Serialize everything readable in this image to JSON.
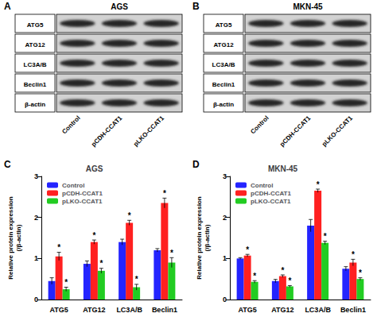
{
  "blots": [
    {
      "label": "A",
      "title": "AGS",
      "proteins": [
        "ATG5",
        "ATG12",
        "LC3A/B",
        "Beclin1",
        "β-actin"
      ],
      "lanes": [
        "Control",
        "pCDH-CCAT1",
        "pLKO-CCAT1"
      ]
    },
    {
      "label": "B",
      "title": "MKN-45",
      "proteins": [
        "ATG5",
        "ATG12",
        "LC3A/B",
        "Beclin1",
        "β-actin"
      ],
      "lanes": [
        "Control",
        "pCDH-CCAT1",
        "pLKO-CCAT1"
      ]
    }
  ],
  "chart_data": [
    {
      "type": "bar",
      "label": "C",
      "title": "AGS",
      "y_label": "Relative protein expression\n(/β-actin)",
      "categories": [
        "ATG5",
        "ATG12",
        "LC3A/B",
        "Beclin1"
      ],
      "series": [
        {
          "name": "Control",
          "color": "#2424ff",
          "values": [
            0.45,
            0.87,
            1.4,
            1.2
          ],
          "errors": [
            0.08,
            0.07,
            0.07,
            0.04
          ]
        },
        {
          "name": "pCDH-CCAT1",
          "color": "#ff2020",
          "values": [
            1.05,
            1.4,
            1.87,
            2.35
          ],
          "errors": [
            0.1,
            0.05,
            0.06,
            0.12
          ],
          "annotations": [
            "*",
            "*",
            "*",
            "*"
          ]
        },
        {
          "name": "pLKO-CCAT1",
          "color": "#22cc22",
          "values": [
            0.25,
            0.7,
            0.3,
            0.9
          ],
          "errors": [
            0.05,
            0.06,
            0.07,
            0.12
          ],
          "annotations": [
            "*",
            "*",
            "*",
            "*"
          ]
        }
      ],
      "ylim": [
        0,
        3
      ],
      "yticks": [
        0,
        1,
        2,
        3
      ],
      "legend": "top-left",
      "grid": false
    },
    {
      "type": "bar",
      "label": "D",
      "title": "MKN-45",
      "y_label": "Relative protein expression\n(/β-actin)",
      "categories": [
        "ATG5",
        "ATG12",
        "LC3A/B",
        "Beclin1"
      ],
      "series": [
        {
          "name": "Control",
          "color": "#2424ff",
          "values": [
            1.0,
            0.45,
            1.8,
            0.75
          ],
          "errors": [
            0.02,
            0.04,
            0.15,
            0.05
          ]
        },
        {
          "name": "pCDH-CCAT1",
          "color": "#ff2020",
          "values": [
            1.07,
            0.57,
            2.65,
            0.9
          ],
          "errors": [
            0.03,
            0.03,
            0.04,
            0.08
          ],
          "annotations": [
            "*",
            "*",
            "*",
            "*"
          ]
        },
        {
          "name": "pLKO-CCAT1",
          "color": "#22cc22",
          "values": [
            0.43,
            0.32,
            1.38,
            0.5
          ],
          "errors": [
            0.03,
            0.02,
            0.04,
            0.03
          ],
          "annotations": [
            "*",
            "*",
            "*",
            "*"
          ]
        }
      ],
      "ylim": [
        0,
        3
      ],
      "yticks": [
        0,
        1,
        2,
        3
      ],
      "legend": "top-left",
      "grid": false
    }
  ]
}
